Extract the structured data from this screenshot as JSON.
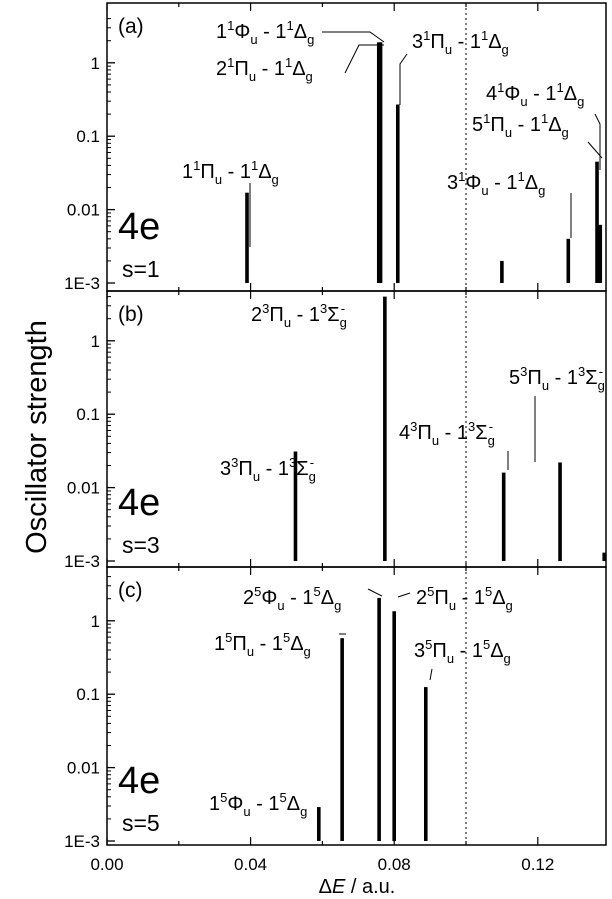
{
  "figure": {
    "ylabel": "Oscillator strength",
    "xlabel_delta": "Δ",
    "xlabel_var": "E",
    "xlabel_unit": " / a.u.",
    "x_ticks": [
      "0.00",
      "0.04",
      "0.08",
      "0.12"
    ],
    "y_ticks": [
      "1E-3",
      "0.01",
      "0.1",
      "1"
    ]
  },
  "chart_data": [
    {
      "type": "bar",
      "panel": "(a)",
      "system": "4e",
      "spin": "s=1",
      "xlim": [
        0.0,
        0.139
      ],
      "ylim": [
        0.001,
        4
      ],
      "yscale": "log",
      "reference_line_x": 0.1,
      "bars": [
        {
          "x": 0.039,
          "y": 0.017
        },
        {
          "x": 0.0757,
          "y": 1.9
        },
        {
          "x": 0.0762,
          "y": 1.9
        },
        {
          "x": 0.081,
          "y": 0.27
        },
        {
          "x": 0.11,
          "y": 0.002
        },
        {
          "x": 0.1285,
          "y": 0.004
        },
        {
          "x": 0.1365,
          "y": 0.045
        },
        {
          "x": 0.1374,
          "y": 0.0062
        }
      ],
      "labels": [
        {
          "id": "a1",
          "pre": "1",
          "sup1": "1",
          "term": "Π",
          "sub1": "u",
          "mid": " - 1",
          "sup2": "1",
          "final": "Δ",
          "sub2": "g",
          "sup3": ""
        },
        {
          "id": "a2",
          "pre": "1",
          "sup1": "1",
          "term": "Φ",
          "sub1": "u",
          "mid": " - 1",
          "sup2": "1",
          "final": "Δ",
          "sub2": "g",
          "sup3": ""
        },
        {
          "id": "a3",
          "pre": "2",
          "sup1": "1",
          "term": "Π",
          "sub1": "u",
          "mid": " - 1",
          "sup2": "1",
          "final": "Δ",
          "sub2": "g",
          "sup3": ""
        },
        {
          "id": "a4",
          "pre": "3",
          "sup1": "1",
          "term": "Π",
          "sub1": "u",
          "mid": " - 1",
          "sup2": "1",
          "final": "Δ",
          "sub2": "g",
          "sup3": ""
        },
        {
          "id": "a5",
          "pre": "4",
          "sup1": "1",
          "term": "Φ",
          "sub1": "u",
          "mid": " - 1",
          "sup2": "1",
          "final": "Δ",
          "sub2": "g",
          "sup3": ""
        },
        {
          "id": "a6",
          "pre": "5",
          "sup1": "1",
          "term": "Π",
          "sub1": "u",
          "mid": " - 1",
          "sup2": "1",
          "final": "Δ",
          "sub2": "g",
          "sup3": ""
        },
        {
          "id": "a7",
          "pre": "3",
          "sup1": "1",
          "term": "Φ",
          "sub1": "u",
          "mid": " - 1",
          "sup2": "1",
          "final": "Δ",
          "sub2": "g",
          "sup3": ""
        }
      ]
    },
    {
      "type": "bar",
      "panel": "(b)",
      "system": "4e",
      "spin": "s=3",
      "xlim": [
        0.0,
        0.139
      ],
      "ylim": [
        0.001,
        4
      ],
      "yscale": "log",
      "reference_line_x": 0.1,
      "bars": [
        {
          "x": 0.0525,
          "y": 0.031
        },
        {
          "x": 0.0774,
          "y": 4.0
        },
        {
          "x": 0.1105,
          "y": 0.016
        },
        {
          "x": 0.1262,
          "y": 0.022
        },
        {
          "x": 0.1385,
          "y": 0.0013
        }
      ],
      "labels": [
        {
          "id": "b1",
          "pre": "2",
          "sup1": "3",
          "term": "Π",
          "sub1": "u",
          "mid": " - 1",
          "sup2": "3",
          "final": "Σ",
          "sub2": "g",
          "sup3": "-"
        },
        {
          "id": "b2",
          "pre": "3",
          "sup1": "3",
          "term": "Π",
          "sub1": "u",
          "mid": " - 1",
          "sup2": "3",
          "final": "Σ",
          "sub2": "g",
          "sup3": "-"
        },
        {
          "id": "b3",
          "pre": "4",
          "sup1": "3",
          "term": "Π",
          "sub1": "u",
          "mid": " - 1",
          "sup2": "3",
          "final": "Σ",
          "sub2": "g",
          "sup3": "-"
        },
        {
          "id": "b4",
          "pre": "5",
          "sup1": "3",
          "term": "Π",
          "sub1": "u",
          "mid": " - 1",
          "sup2": "3",
          "final": "Σ",
          "sub2": "g",
          "sup3": "-"
        }
      ]
    },
    {
      "type": "bar",
      "panel": "(c)",
      "system": "4e",
      "spin": "s=5",
      "xlim": [
        0.0,
        0.139
      ],
      "ylim": [
        0.001,
        4
      ],
      "yscale": "log",
      "reference_line_x": 0.1,
      "bars": [
        {
          "x": 0.059,
          "y": 0.0029
        },
        {
          "x": 0.0655,
          "y": 0.58
        },
        {
          "x": 0.0758,
          "y": 2.05
        },
        {
          "x": 0.08,
          "y": 1.35
        },
        {
          "x": 0.0888,
          "y": 0.125
        }
      ],
      "labels": [
        {
          "id": "c1",
          "pre": "1",
          "sup1": "5",
          "term": "Φ",
          "sub1": "u",
          "mid": " - 1",
          "sup2": "5",
          "final": "Δ",
          "sub2": "g",
          "sup3": ""
        },
        {
          "id": "c2",
          "pre": "1",
          "sup1": "5",
          "term": "Π",
          "sub1": "u",
          "mid": " - 1",
          "sup2": "5",
          "final": "Δ",
          "sub2": "g",
          "sup3": ""
        },
        {
          "id": "c3",
          "pre": "2",
          "sup1": "5",
          "term": "Φ",
          "sub1": "u",
          "mid": " - 1",
          "sup2": "5",
          "final": "Δ",
          "sub2": "g",
          "sup3": ""
        },
        {
          "id": "c4",
          "pre": "2",
          "sup1": "5",
          "term": "Π",
          "sub1": "u",
          "mid": " - 1",
          "sup2": "5",
          "final": "Δ",
          "sub2": "g",
          "sup3": ""
        },
        {
          "id": "c5",
          "pre": "3",
          "sup1": "5",
          "term": "Π",
          "sub1": "u",
          "mid": " - 1",
          "sup2": "5",
          "final": "Δ",
          "sub2": "g",
          "sup3": ""
        }
      ]
    }
  ]
}
